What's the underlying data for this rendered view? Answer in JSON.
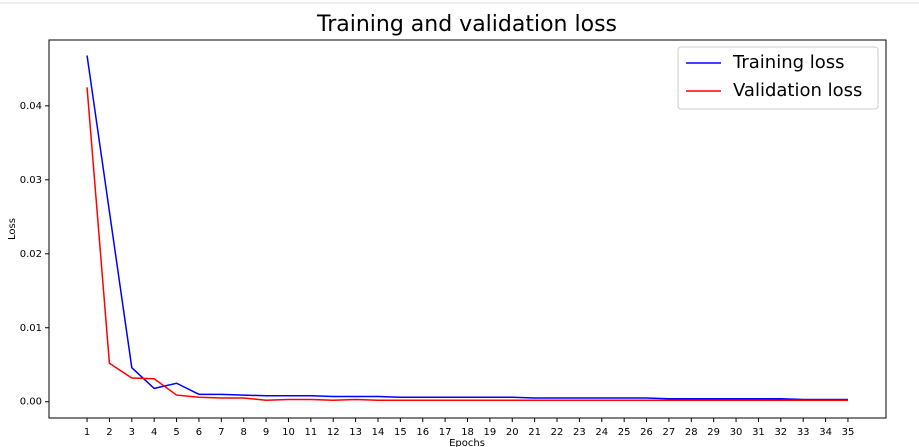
{
  "chart_data": {
    "type": "line",
    "title": "Training and validation loss",
    "x_label": "Epochs",
    "y_label": "Loss",
    "x": [
      1,
      2,
      3,
      4,
      5,
      6,
      7,
      8,
      9,
      10,
      11,
      12,
      13,
      14,
      15,
      16,
      17,
      18,
      19,
      20,
      21,
      22,
      23,
      24,
      25,
      26,
      27,
      28,
      29,
      30,
      31,
      32,
      33,
      34,
      35
    ],
    "series": [
      {
        "name": "Training loss",
        "color": "#0000ff",
        "values": [
          0.0468,
          0.0257,
          0.0046,
          0.0018,
          0.0025,
          0.001,
          0.001,
          0.0009,
          0.0008,
          0.0008,
          0.0008,
          0.0007,
          0.0007,
          0.0007,
          0.0006,
          0.0006,
          0.0006,
          0.0006,
          0.0006,
          0.0006,
          0.0005,
          0.0005,
          0.0005,
          0.0005,
          0.0005,
          0.0005,
          0.0004,
          0.0004,
          0.0004,
          0.0004,
          0.0004,
          0.0004,
          0.0003,
          0.0003,
          0.0003
        ]
      },
      {
        "name": "Validation loss",
        "color": "#ff0000",
        "values": [
          0.0425,
          0.0052,
          0.0032,
          0.0031,
          0.0009,
          0.0006,
          0.0005,
          0.0005,
          0.0002,
          0.0003,
          0.0003,
          0.0002,
          0.0003,
          0.0002,
          0.0002,
          0.0002,
          0.0002,
          0.0002,
          0.0002,
          0.0002,
          0.0002,
          0.0002,
          0.0002,
          0.0002,
          0.0002,
          0.0002,
          0.0002,
          0.0002,
          0.0002,
          0.0002,
          0.0002,
          0.0002,
          0.0002,
          0.0002,
          0.0002
        ]
      }
    ],
    "xlim": [
      -0.7,
      36.7
    ],
    "xticks": [
      1,
      2,
      3,
      4,
      5,
      6,
      7,
      8,
      9,
      10,
      11,
      12,
      13,
      14,
      15,
      16,
      17,
      18,
      19,
      20,
      21,
      22,
      23,
      24,
      25,
      26,
      27,
      28,
      29,
      30,
      31,
      32,
      33,
      34,
      35
    ],
    "ylim": [
      -0.0022,
      0.0489
    ],
    "yticks": [
      {
        "value": 0,
        "label": "0.00"
      },
      {
        "value": 0.01,
        "label": "0.01"
      },
      {
        "value": 0.02,
        "label": "0.02"
      },
      {
        "value": 0.03,
        "label": "0.03"
      },
      {
        "value": 0.04,
        "label": "0.04"
      }
    ],
    "legend": "upper right"
  }
}
